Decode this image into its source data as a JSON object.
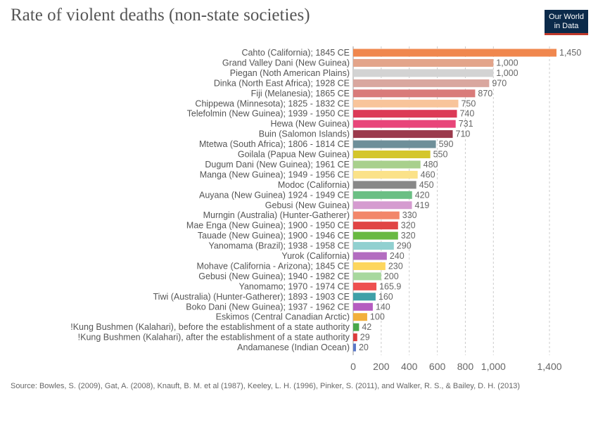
{
  "header": {
    "title": "Rate of violent deaths (non-state societies)",
    "logo_line1": "Our World",
    "logo_line2": "in Data"
  },
  "footer": {
    "source": "Source: Bowles, S. (2009), Gat, A. (2008), Knauft, B. M. et al (1987), Keeley, L. H. (1996), Pinker, S. (2011), and Walker, R. S., & Bailey, D. H. (2013)"
  },
  "chart_data": {
    "type": "bar",
    "orientation": "horizontal",
    "title": "Rate of violent deaths (non-state societies)",
    "xlabel": "",
    "ylabel": "",
    "xlim": [
      0,
      1450
    ],
    "x_ticks": [
      0,
      200,
      400,
      600,
      800,
      1000,
      1400
    ],
    "x_tick_labels": [
      "0",
      "200",
      "400",
      "600",
      "800",
      "1,000",
      "1,400"
    ],
    "grid": true,
    "categories": [
      "Cahto (California); 1845 CE",
      "Grand Valley Dani (New Guinea)",
      "Piegan (Noth American Plains)",
      "Dinka (North East Africa); 1928 CE",
      "Fiji (Melanesia); 1865 CE",
      "Chippewa (Minnesota); 1825 - 1832 CE",
      "Telefolmin (New Guinea); 1939 - 1950 CE",
      "Hewa (New Guinea)",
      "Buin (Salomon Islands)",
      "Mtetwa (South Africa); 1806 - 1814 CE",
      "Goilala (Papua New Guinea)",
      "Dugum Dani (New Guinea); 1961 CE",
      "Manga (New Guinea); 1949 - 1956 CE",
      "Modoc (California)",
      "Auyana (New Guinea) 1924 - 1949 CE",
      "Gebusi (New Guinea)",
      "Murngin (Australia) (Hunter-Gatherer)",
      "Mae Enga (New Guinea); 1900 - 1950 CE",
      "Tauade (New Guinea); 1900 - 1946 CE",
      "Yanomama (Brazil); 1938 - 1958 CE",
      "Yurok (California)",
      "Mohave (California - Arizona); 1845 CE",
      "Gebusi (New Guinea); 1940 - 1982 CE",
      "Yanomamo; 1970 - 1974 CE",
      "Tiwi (Australia) (Hunter-Gatherer); 1893 - 1903 CE",
      "Boko Dani (New Guinea); 1937 - 1962 CE",
      "Eskimos (Central Canadian Arctic)",
      "!Kung Bushmen (Kalahari), before the establishment of a state authority",
      "!Kung Bushmen (Kalahari), after the establishment of a state authority",
      "Andamanese (Indian Ocean)"
    ],
    "values": [
      1450,
      1000,
      1000,
      970,
      870,
      750,
      740,
      731,
      710,
      590,
      550,
      480,
      460,
      450,
      420,
      419,
      330,
      320,
      320,
      290,
      240,
      230,
      200,
      165.9,
      160,
      140,
      100,
      42,
      29,
      20
    ],
    "value_labels": [
      "1,450",
      "1,000",
      "1,000",
      "970",
      "870",
      "750",
      "740",
      "731",
      "710",
      "590",
      "550",
      "480",
      "460",
      "450",
      "420",
      "419",
      "330",
      "320",
      "320",
      "290",
      "240",
      "230",
      "200",
      "165.9",
      "160",
      "140",
      "100",
      "42",
      "29",
      "20"
    ],
    "colors": [
      "#f0874e",
      "#e3a48a",
      "#d3d3d3",
      "#d9a79f",
      "#d97b7a",
      "#f8c49a",
      "#dc3a56",
      "#e8467a",
      "#9b3a4c",
      "#6e8f99",
      "#d4c62c",
      "#a8d08d",
      "#fbe289",
      "#888888",
      "#6bbf84",
      "#d59bd0",
      "#f2876a",
      "#e04545",
      "#69b942",
      "#91d0d0",
      "#b36cc0",
      "#fdd65e",
      "#a8d89e",
      "#ee5050",
      "#3fa0a8",
      "#b55cc0",
      "#f2b03c",
      "#49a84a",
      "#dc3c3c",
      "#5a78c8"
    ]
  }
}
